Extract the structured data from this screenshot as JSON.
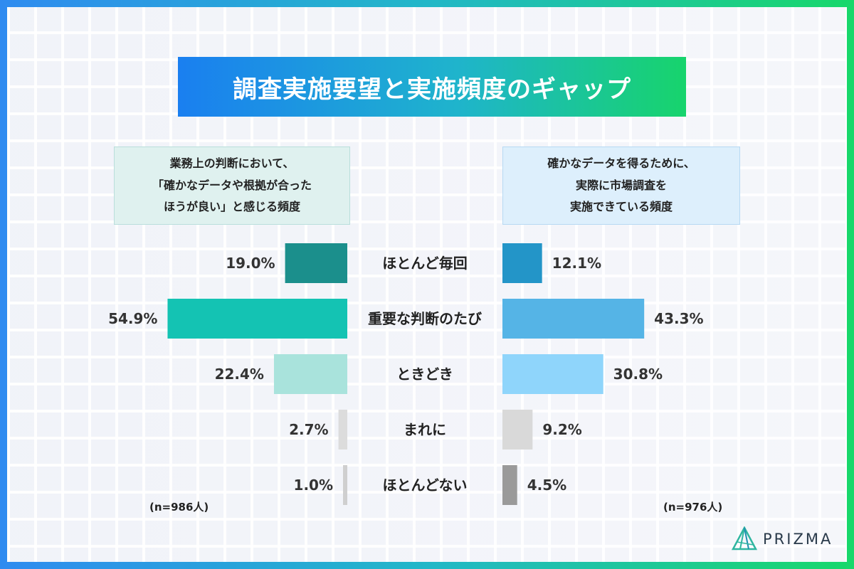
{
  "title": "調査実施要望と実施頻度のギャップ",
  "left_panel": {
    "lines": [
      "業務上の判断において、",
      "「確かなデータや根拠が合った",
      "ほうが良い」と感じる頻度"
    ],
    "sample": "(n=986人)"
  },
  "right_panel": {
    "lines": [
      "確かなデータを得るために、",
      "実際に市場調査を",
      "実施できている頻度"
    ],
    "sample": "(n=976人)"
  },
  "brand": "PRIZMA",
  "chart_data": {
    "type": "bar",
    "categories": [
      "ほとんど毎回",
      "重要な判断のたび",
      "ときどき",
      "まれに",
      "ほとんどない"
    ],
    "series": [
      {
        "values": [
          19.0,
          54.9,
          22.4,
          2.7,
          1.0
        ],
        "labels": [
          "19.0%",
          "54.9%",
          "22.4%",
          "2.7%",
          "1.0%"
        ],
        "colors": [
          "#1b8f8c",
          "#14c3b3",
          "#a9e3dc",
          "#dcdcdc",
          "#cfcfcf"
        ]
      },
      {
        "values": [
          12.1,
          43.3,
          30.8,
          9.2,
          4.5
        ],
        "labels": [
          "12.1%",
          "43.3%",
          "30.8%",
          "9.2%",
          "4.5%"
        ],
        "colors": [
          "#2395c8",
          "#55b4e6",
          "#8fd5fb",
          "#d9d9d9",
          "#9a9a9a"
        ]
      }
    ]
  }
}
